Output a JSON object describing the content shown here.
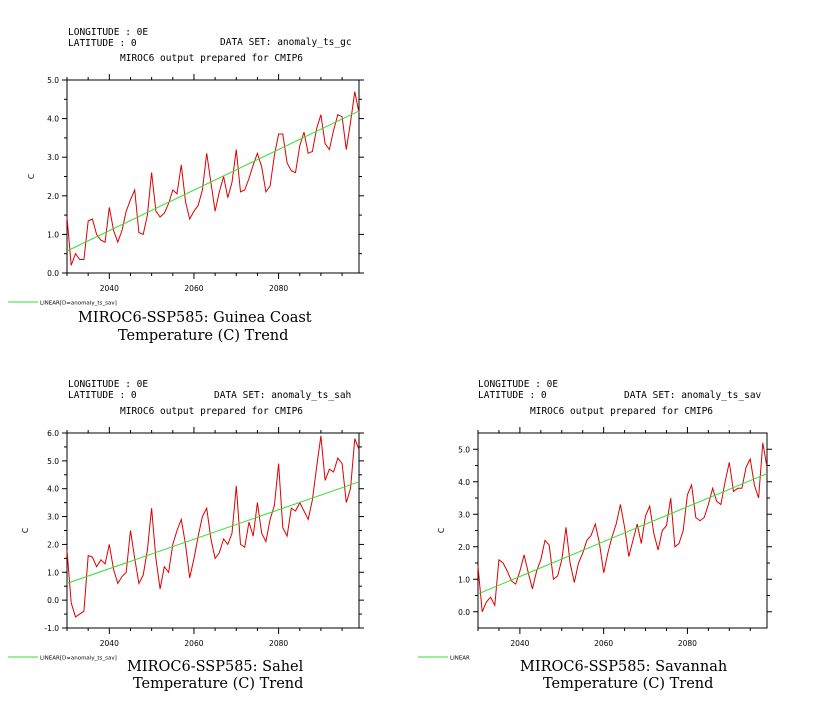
{
  "panels": [
    {
      "id": "gc",
      "longitude_label": "LONGITUDE : 0E",
      "latitude_label": "LATITUDE : 0",
      "dataset_label": "DATA SET: anomaly_ts_gc",
      "subtitle": "MIROC6 output prepared for CMIP6",
      "title_line1": "MIROC6-SSP585: Guinea Coast",
      "title_line2": "Temperature (C) Trend",
      "legend_label": "LINEAR[D=anomaly_ts_sav]"
    },
    {
      "id": "sah",
      "longitude_label": "LONGITUDE : 0E",
      "latitude_label": "LATITUDE : 0",
      "dataset_label": "DATA SET: anomaly_ts_sah",
      "subtitle": "MIROC6 output prepared for CMIP6",
      "title_line1": "MIROC6-SSP585: Sahel",
      "title_line2": "Temperature (C) Trend",
      "legend_label": "LINEAR[D=anomaly_ts_sav]"
    },
    {
      "id": "sav",
      "longitude_label": "LONGITUDE : 0E",
      "latitude_label": "LATITUDE : 0",
      "dataset_label": "DATA SET: anomaly_ts_sav",
      "subtitle": "MIROC6 output prepared for CMIP6",
      "title_line1": "MIROC6-SSP585: Savannah",
      "title_line2": "Temperature (C) Trend",
      "legend_label": "LINEAR"
    }
  ],
  "colors": {
    "data": "#dd0000",
    "trend": "#33dd33",
    "axis": "#000000"
  },
  "chart_data": [
    {
      "type": "line",
      "panel": "gc",
      "xlim": [
        2030,
        2099
      ],
      "ylim": [
        0,
        5
      ],
      "xticks": [
        2040,
        2060,
        2080
      ],
      "xtick_labels": [
        "2040",
        "2060",
        "2080"
      ],
      "yticks": [
        0,
        1,
        2,
        3,
        4,
        5
      ],
      "ytick_labels": [
        "0.0",
        "1.0",
        "2.0",
        "3.0",
        "4.0",
        "5.0"
      ],
      "ylabel": "C",
      "series": [
        {
          "kind": "data",
          "x": [
            2030,
            2031,
            2032,
            2033,
            2034,
            2035,
            2036,
            2037,
            2038,
            2039,
            2040,
            2041,
            2042,
            2043,
            2044,
            2045,
            2046,
            2047,
            2048,
            2049,
            2050,
            2051,
            2052,
            2053,
            2054,
            2055,
            2056,
            2057,
            2058,
            2059,
            2060,
            2061,
            2062,
            2063,
            2064,
            2065,
            2066,
            2067,
            2068,
            2069,
            2070,
            2071,
            2072,
            2073,
            2074,
            2075,
            2076,
            2077,
            2078,
            2079,
            2080,
            2081,
            2082,
            2083,
            2084,
            2085,
            2086,
            2087,
            2088,
            2089,
            2090,
            2091,
            2092,
            2093,
            2094,
            2095,
            2096,
            2097,
            2098,
            2099
          ],
          "y": [
            1.45,
            0.2,
            0.5,
            0.35,
            0.35,
            1.35,
            1.4,
            1.0,
            0.85,
            0.8,
            1.7,
            1.1,
            0.8,
            1.1,
            1.6,
            1.9,
            2.15,
            1.05,
            1.0,
            1.5,
            2.6,
            1.6,
            1.45,
            1.55,
            1.8,
            2.15,
            2.05,
            2.8,
            1.85,
            1.4,
            1.6,
            1.75,
            2.15,
            3.1,
            2.35,
            1.6,
            2.1,
            2.5,
            1.95,
            2.35,
            3.2,
            2.1,
            2.15,
            2.45,
            2.8,
            3.1,
            2.75,
            2.1,
            2.25,
            3.05,
            3.6,
            3.6,
            2.85,
            2.65,
            2.6,
            3.3,
            3.65,
            3.1,
            3.15,
            3.75,
            4.1,
            3.35,
            3.2,
            3.7,
            4.1,
            4.05,
            3.2,
            3.9,
            4.7,
            4.15
          ]
        },
        {
          "name": "LINEAR[D=anomaly_ts_sav]",
          "kind": "trend",
          "x": [
            2030,
            2099
          ],
          "y": [
            0.57,
            4.2
          ]
        }
      ]
    },
    {
      "type": "line",
      "panel": "sah",
      "xlim": [
        2030,
        2099
      ],
      "ylim": [
        -1,
        6
      ],
      "xticks": [
        2040,
        2060,
        2080
      ],
      "xtick_labels": [
        "2040",
        "2060",
        "2080"
      ],
      "yticks": [
        -1,
        0,
        1,
        2,
        3,
        4,
        5,
        6
      ],
      "ytick_labels": [
        "-1.0",
        "0.0",
        "1.0",
        "2.0",
        "3.0",
        "4.0",
        "5.0",
        "6.0"
      ],
      "ylabel": "C",
      "series": [
        {
          "kind": "data",
          "x": [
            2030,
            2031,
            2032,
            2033,
            2034,
            2035,
            2036,
            2037,
            2038,
            2039,
            2040,
            2041,
            2042,
            2043,
            2044,
            2045,
            2046,
            2047,
            2048,
            2049,
            2050,
            2051,
            2052,
            2053,
            2054,
            2055,
            2056,
            2057,
            2058,
            2059,
            2060,
            2061,
            2062,
            2063,
            2064,
            2065,
            2066,
            2067,
            2068,
            2069,
            2070,
            2071,
            2072,
            2073,
            2074,
            2075,
            2076,
            2077,
            2078,
            2079,
            2080,
            2081,
            2082,
            2083,
            2084,
            2085,
            2086,
            2087,
            2088,
            2089,
            2090,
            2091,
            2092,
            2093,
            2094,
            2095,
            2096,
            2097,
            2098,
            2099
          ],
          "y": [
            1.8,
            -0.1,
            -0.6,
            -0.5,
            -0.4,
            1.6,
            1.55,
            1.2,
            1.45,
            1.3,
            2.0,
            1.1,
            0.6,
            0.85,
            1.0,
            2.5,
            1.5,
            0.6,
            0.9,
            1.8,
            3.3,
            1.5,
            0.4,
            1.2,
            1.0,
            2.0,
            2.5,
            2.9,
            2.0,
            0.8,
            1.5,
            2.3,
            3.0,
            3.3,
            2.2,
            1.5,
            1.7,
            2.2,
            2.0,
            2.4,
            4.1,
            2.0,
            1.9,
            2.8,
            2.3,
            3.5,
            2.4,
            2.1,
            2.9,
            3.4,
            4.9,
            2.6,
            2.3,
            3.3,
            3.2,
            3.5,
            3.2,
            2.9,
            3.6,
            4.8,
            5.9,
            4.3,
            4.7,
            4.6,
            5.1,
            4.9,
            3.5,
            4.0,
            5.8,
            5.4
          ]
        },
        {
          "name": "LINEAR[D=anomaly_ts_sav]",
          "kind": "trend",
          "x": [
            2030,
            2099
          ],
          "y": [
            0.6,
            4.25
          ]
        }
      ]
    },
    {
      "type": "line",
      "panel": "sav",
      "xlim": [
        2030,
        2099
      ],
      "ylim": [
        -0.5,
        5.5
      ],
      "xticks": [
        2040,
        2060,
        2080
      ],
      "xtick_labels": [
        "2040",
        "2060",
        "2080"
      ],
      "yticks": [
        0,
        1,
        2,
        3,
        4,
        5
      ],
      "ytick_labels": [
        "0.0",
        "1.0",
        "2.0",
        "3.0",
        "4.0",
        "5.0"
      ],
      "ylabel": "C",
      "series": [
        {
          "kind": "data",
          "x": [
            2030,
            2031,
            2032,
            2033,
            2034,
            2035,
            2036,
            2037,
            2038,
            2039,
            2040,
            2041,
            2042,
            2043,
            2044,
            2045,
            2046,
            2047,
            2048,
            2049,
            2050,
            2051,
            2052,
            2053,
            2054,
            2055,
            2056,
            2057,
            2058,
            2059,
            2060,
            2061,
            2062,
            2063,
            2064,
            2065,
            2066,
            2067,
            2068,
            2069,
            2070,
            2071,
            2072,
            2073,
            2074,
            2075,
            2076,
            2077,
            2078,
            2079,
            2080,
            2081,
            2082,
            2083,
            2084,
            2085,
            2086,
            2087,
            2088,
            2089,
            2090,
            2091,
            2092,
            2093,
            2094,
            2095,
            2096,
            2097,
            2098,
            2099
          ],
          "y": [
            1.4,
            0.0,
            0.3,
            0.45,
            0.2,
            1.6,
            1.5,
            1.25,
            0.95,
            0.85,
            1.25,
            1.75,
            1.2,
            0.7,
            1.25,
            1.6,
            2.2,
            2.05,
            1.0,
            1.1,
            1.6,
            2.6,
            1.5,
            0.9,
            1.5,
            1.8,
            2.2,
            2.35,
            2.7,
            2.1,
            1.2,
            1.8,
            2.3,
            2.7,
            3.3,
            2.6,
            1.7,
            2.2,
            2.7,
            2.1,
            2.95,
            3.25,
            2.4,
            1.9,
            2.5,
            2.65,
            3.5,
            2.0,
            2.1,
            2.5,
            3.6,
            3.9,
            2.9,
            2.8,
            2.9,
            3.3,
            3.8,
            3.4,
            3.3,
            4.0,
            4.6,
            3.7,
            3.8,
            3.8,
            4.45,
            4.7,
            3.9,
            3.5,
            5.2,
            4.45
          ]
        },
        {
          "name": "LINEAR",
          "kind": "trend",
          "x": [
            2030,
            2099
          ],
          "y": [
            0.55,
            4.25
          ]
        }
      ]
    }
  ]
}
